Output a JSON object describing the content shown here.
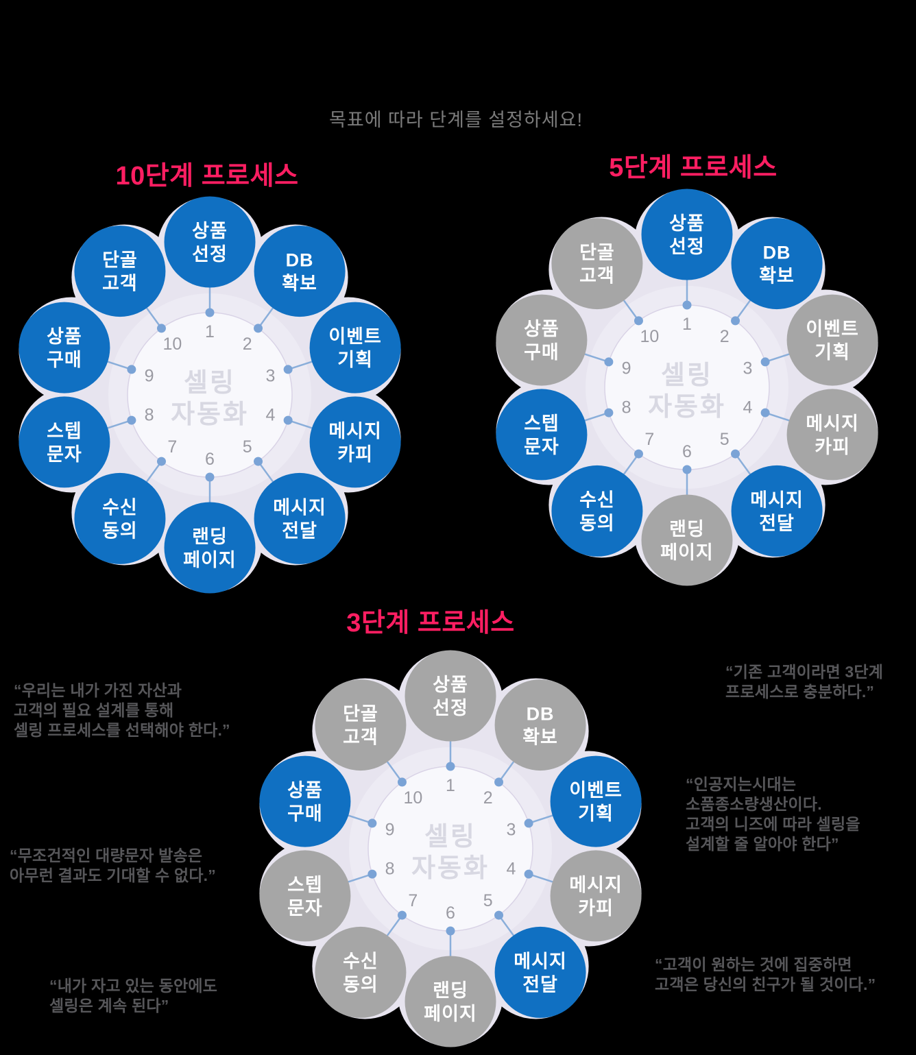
{
  "page": {
    "subtitle": "목표에 따라 단계를 설정하세요!"
  },
  "center_label": {
    "line1": "셀링",
    "line2": "자동화"
  },
  "steps": [
    {
      "num": "1",
      "line1": "상품",
      "line2": "선정"
    },
    {
      "num": "2",
      "line1": "DB",
      "line2": "확보"
    },
    {
      "num": "3",
      "line1": "이벤트",
      "line2": "기획"
    },
    {
      "num": "4",
      "line1": "메시지",
      "line2": "카피"
    },
    {
      "num": "5",
      "line1": "메시지",
      "line2": "전달"
    },
    {
      "num": "6",
      "line1": "랜딩",
      "line2": "페이지"
    },
    {
      "num": "7",
      "line1": "수신",
      "line2": "동의"
    },
    {
      "num": "8",
      "line1": "스텝",
      "line2": "문자"
    },
    {
      "num": "9",
      "line1": "상품",
      "line2": "구매"
    },
    {
      "num": "10",
      "line1": "단골",
      "line2": "고객"
    }
  ],
  "diagrams": [
    {
      "title": "10단계 프로세스",
      "active_steps": [
        1,
        2,
        3,
        4,
        5,
        6,
        7,
        8,
        9,
        10
      ]
    },
    {
      "title": "5단계 프로세스",
      "active_steps": [
        1,
        2,
        5,
        7,
        8
      ]
    },
    {
      "title": "3단계 프로세스",
      "active_steps": [
        3,
        5,
        9
      ]
    }
  ],
  "quotes": [
    {
      "lines": [
        "“우리는 내가 가진 자산과",
        "고객의 필요 설계를 통해",
        "셀링 프로세스를 선택해야 한다.”"
      ]
    },
    {
      "lines": [
        "“무조건적인 대량문자 발송은",
        "아무런 결과도 기대할 수 없다.”"
      ]
    },
    {
      "lines": [
        "“내가 자고 있는 동안에도",
        "셀링은 계속 된다”"
      ]
    },
    {
      "lines": [
        "“기존 고객이라면 3단계",
        "프로세스로 충분하다.”"
      ]
    },
    {
      "lines": [
        "“인공지는시대는",
        "소품종소량생산이다.",
        "고객의 니즈에 따라 셀링을",
        "설계할 줄 알아야 한다”"
      ]
    },
    {
      "lines": [
        "“고객이 원하는 것에 집중하면",
        "고객은 당신의 친구가 될 것이다.”"
      ]
    }
  ],
  "colors": {
    "title_pink": "#ff1e62",
    "active_blue": "#1070c2",
    "inactive_gray": "#a6a6a6",
    "ring_lavender": "#e7e4ef",
    "ring_inner": "#edebf4",
    "hub_fill": "#f8f8fc",
    "hub_stroke": "#d9d3e6",
    "connector_line": "#8aaeda",
    "connector_dot": "#7aa3d6",
    "number_gray": "#9a9aa2",
    "center_text": "#d8d8e2",
    "quote_gray": "#57575a",
    "subtitle_gray": "#7b7b7b"
  }
}
